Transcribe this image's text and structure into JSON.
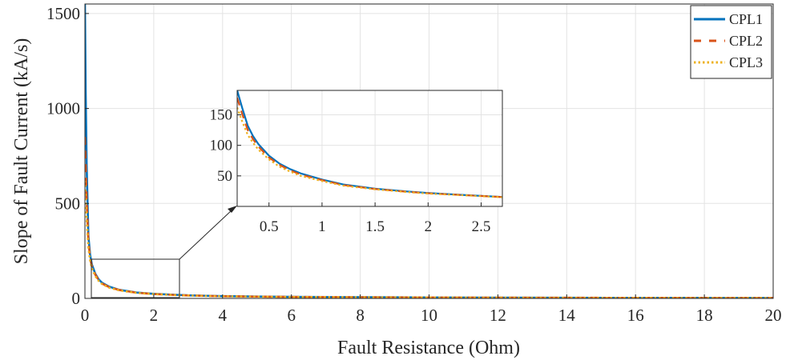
{
  "chart_data": [
    {
      "type": "line",
      "xlabel": "Fault Resistance (Ohm)",
      "ylabel": "Slope of Fault Current (kA/s)",
      "xlim": [
        0,
        20
      ],
      "ylim": [
        0,
        1550
      ],
      "xticks": [
        0,
        2,
        4,
        6,
        8,
        10,
        12,
        14,
        16,
        18,
        20
      ],
      "yticks": [
        0,
        500,
        1000,
        1500
      ],
      "grid": true,
      "legend_position": "top-right",
      "series": [
        {
          "name": "CPL1",
          "color": "#0072BD",
          "line_style": "solid",
          "x": [
            0.0,
            0.02,
            0.05,
            0.1,
            0.15,
            0.2,
            0.3,
            0.4,
            0.5,
            0.7,
            1.0,
            1.5,
            2.0,
            2.5,
            3,
            4,
            5,
            6,
            8,
            10,
            12,
            14,
            16,
            18,
            20
          ],
          "y": [
            1550,
            1100,
            700,
            330,
            230,
            180,
            130,
            100,
            82,
            62,
            45,
            31,
            24,
            20,
            16,
            12,
            10,
            8,
            6.5,
            5,
            4,
            3.5,
            3,
            2.7,
            2.4
          ]
        },
        {
          "name": "CPL2",
          "color": "#D95319",
          "line_style": "dashed",
          "x": [
            0.0,
            0.02,
            0.05,
            0.1,
            0.15,
            0.2,
            0.3,
            0.4,
            0.5,
            0.7,
            1.0,
            1.5,
            2.0,
            2.5,
            3,
            4,
            5,
            6,
            8,
            10,
            12,
            14,
            16,
            18,
            20
          ],
          "y": [
            850,
            720,
            520,
            300,
            215,
            170,
            125,
            96,
            78,
            60,
            44,
            30,
            23,
            19,
            15.5,
            11.5,
            9.5,
            7.8,
            6.2,
            4.9,
            4,
            3.4,
            3,
            2.6,
            2.3
          ]
        },
        {
          "name": "CPL3",
          "color": "#EDB120",
          "line_style": "dotted",
          "x": [
            0.0,
            0.02,
            0.05,
            0.1,
            0.15,
            0.2,
            0.3,
            0.4,
            0.5,
            0.7,
            1.0,
            1.5,
            2.0,
            2.5,
            3,
            4,
            5,
            6,
            8,
            10,
            12,
            14,
            16,
            18,
            20
          ],
          "y": [
            620,
            540,
            420,
            270,
            200,
            160,
            118,
            92,
            75,
            57,
            42,
            29,
            22.5,
            18.5,
            15,
            11.2,
            9.2,
            7.6,
            6,
            4.8,
            3.9,
            3.3,
            2.9,
            2.5,
            2.2
          ]
        }
      ]
    },
    {
      "type": "line",
      "xlim": [
        0.2,
        2.7
      ],
      "ylim": [
        0,
        190
      ],
      "xticks": [
        0.5,
        1,
        1.5,
        2,
        2.5
      ],
      "yticks": [
        50,
        100,
        150
      ],
      "grid": true,
      "series": [
        {
          "name": "CPL1",
          "color": "#0072BD",
          "line_style": "solid",
          "x": [
            0.2,
            0.25,
            0.3,
            0.35,
            0.4,
            0.5,
            0.6,
            0.7,
            0.8,
            1.0,
            1.2,
            1.5,
            1.8,
            2.0,
            2.3,
            2.7
          ],
          "y": [
            190,
            160,
            132,
            115,
            102,
            83,
            70,
            61,
            54,
            44,
            36,
            29,
            24.5,
            22,
            19,
            15.5
          ]
        },
        {
          "name": "CPL2",
          "color": "#D95319",
          "line_style": "dashed",
          "x": [
            0.2,
            0.25,
            0.3,
            0.35,
            0.4,
            0.5,
            0.6,
            0.7,
            0.8,
            1.0,
            1.2,
            1.5,
            1.8,
            2.0,
            2.3,
            2.7
          ],
          "y": [
            178,
            150,
            125,
            110,
            98,
            80,
            68,
            59,
            52,
            43,
            35,
            28.5,
            24,
            21.5,
            18.8,
            15.3
          ]
        },
        {
          "name": "CPL3",
          "color": "#EDB120",
          "line_style": "dotted",
          "x": [
            0.2,
            0.25,
            0.3,
            0.35,
            0.4,
            0.5,
            0.6,
            0.7,
            0.8,
            1.0,
            1.2,
            1.5,
            1.8,
            2.0,
            2.3,
            2.7
          ],
          "y": [
            162,
            138,
            117,
            104,
            93,
            77,
            65,
            57,
            50,
            41.5,
            34,
            28,
            23.5,
            21,
            18.5,
            15
          ]
        }
      ]
    }
  ]
}
